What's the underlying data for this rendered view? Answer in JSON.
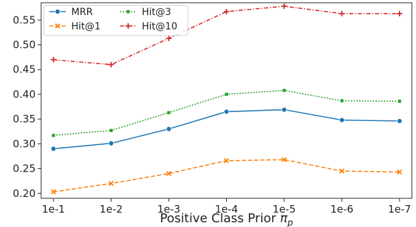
{
  "chart_data": {
    "type": "line",
    "categories": [
      "1e-1",
      "1e-2",
      "1e-3",
      "1e-4",
      "1e-5",
      "1e-6",
      "1e-7"
    ],
    "xlabel": "Positive Class Prior π_p",
    "xlabel_main": "Positive Class Prior ",
    "xlabel_symbol": "π",
    "xlabel_sub": "p",
    "ylabel": "",
    "ylim": [
      0.19,
      0.585
    ],
    "yticks": [
      0.2,
      0.25,
      0.3,
      0.35,
      0.4,
      0.45,
      0.5,
      0.55
    ],
    "ytick_labels": [
      "0.20",
      "0.25",
      "0.30",
      "0.35",
      "0.40",
      "0.45",
      "0.50",
      "0.55"
    ],
    "grid": false,
    "legend_position": "top-left",
    "series": [
      {
        "name": "MRR",
        "color": "#1f77b4",
        "dash": "solid",
        "marker": "circle",
        "values": [
          0.29,
          0.301,
          0.33,
          0.365,
          0.369,
          0.348,
          0.346
        ]
      },
      {
        "name": "Hit@1",
        "color": "#ff7f0e",
        "dash": "dashed",
        "marker": "x",
        "values": [
          0.203,
          0.22,
          0.24,
          0.266,
          0.268,
          0.245,
          0.243
        ]
      },
      {
        "name": "Hit@3",
        "color": "#2ca02c",
        "dash": "dotted",
        "marker": "square",
        "values": [
          0.317,
          0.327,
          0.363,
          0.4,
          0.408,
          0.387,
          0.386
        ]
      },
      {
        "name": "Hit@10",
        "color": "#d62728",
        "dash": "dashdot",
        "marker": "plus",
        "values": [
          0.47,
          0.46,
          0.513,
          0.567,
          0.578,
          0.563,
          0.563
        ]
      }
    ]
  }
}
